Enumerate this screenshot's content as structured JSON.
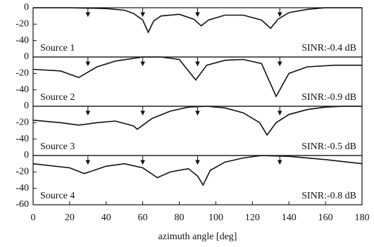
{
  "chart_data": [
    {
      "type": "line",
      "annotation": "Source 1",
      "sinr": "SINR:-0.4 dB",
      "xlim": [
        0,
        180
      ],
      "ylim": [
        -60,
        0
      ],
      "yticks": [
        0,
        -20,
        -40
      ],
      "arrows": [
        30,
        60,
        90,
        135
      ],
      "x": [
        0,
        20,
        40,
        50,
        55,
        60,
        63,
        66,
        70,
        80,
        88,
        92,
        96,
        105,
        115,
        125,
        130,
        134,
        140,
        150,
        160,
        180
      ],
      "values": [
        0,
        0,
        -1,
        -3,
        -7,
        -15,
        -30,
        -16,
        -10,
        -8,
        -14,
        -22,
        -15,
        -9,
        -9,
        -15,
        -25,
        -14,
        -6,
        -2,
        0,
        0
      ]
    },
    {
      "type": "line",
      "annotation": "Source 2",
      "sinr": "SINR:-0.9 dB",
      "xlim": [
        0,
        180
      ],
      "ylim": [
        -60,
        0
      ],
      "yticks": [
        0,
        -20,
        -40
      ],
      "arrows": [
        30,
        60,
        90,
        135
      ],
      "x": [
        0,
        15,
        25,
        35,
        45,
        60,
        70,
        80,
        89,
        95,
        105,
        115,
        125,
        133,
        140,
        150,
        165,
        180
      ],
      "values": [
        -15,
        -17,
        -25,
        -12,
        -5,
        0,
        0,
        -3,
        -28,
        -10,
        -4,
        -3,
        -8,
        -48,
        -20,
        -12,
        -10,
        -10
      ]
    },
    {
      "type": "line",
      "annotation": "Source 3",
      "sinr": "SINR:-0.5 dB",
      "xlim": [
        0,
        180
      ],
      "ylim": [
        -60,
        0
      ],
      "yticks": [
        0,
        -20,
        -40
      ],
      "arrows": [
        30,
        60,
        90,
        135
      ],
      "x": [
        0,
        15,
        25,
        35,
        45,
        55,
        57,
        65,
        75,
        85,
        95,
        105,
        115,
        124,
        128,
        133,
        140,
        150,
        160,
        170,
        180
      ],
      "values": [
        -17,
        -20,
        -23,
        -20,
        -18,
        -24,
        -28,
        -15,
        -6,
        -1,
        0,
        -2,
        -8,
        -20,
        -35,
        -20,
        -10,
        -4,
        -1,
        0,
        0
      ]
    },
    {
      "type": "line",
      "annotation": "Source 4",
      "sinr": "SINR:-0.8 dB",
      "xlim": [
        0,
        180
      ],
      "ylim": [
        -60,
        0
      ],
      "yticks": [
        0,
        -20,
        -40,
        -60
      ],
      "arrows": [
        30,
        60,
        90,
        135
      ],
      "xticks": [
        0,
        20,
        40,
        60,
        80,
        100,
        120,
        140,
        160,
        180
      ],
      "xlabel": "azimuth angle [deg]",
      "x": [
        0,
        20,
        28,
        40,
        50,
        60,
        68,
        75,
        85,
        90,
        93,
        97,
        105,
        115,
        125,
        140,
        160,
        180
      ],
      "values": [
        -10,
        -15,
        -22,
        -13,
        -10,
        -15,
        -27,
        -20,
        -16,
        -25,
        -36,
        -18,
        -8,
        -3,
        0,
        -1,
        -5,
        -10
      ]
    }
  ]
}
